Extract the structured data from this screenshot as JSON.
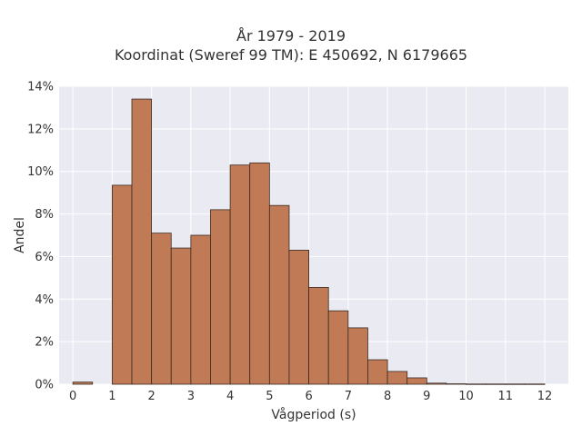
{
  "chart_data": {
    "type": "bar",
    "title_line1": "År 1979 - 2019",
    "title_line2": "Koordinat (Sweref 99 TM): E 450692, N 6179665",
    "xlabel": "Vågperiod (s)",
    "ylabel": "Andel",
    "xlim": [
      -0.35,
      12.6
    ],
    "ylim": [
      0,
      14
    ],
    "x_ticks": [
      0,
      1,
      2,
      3,
      4,
      5,
      6,
      7,
      8,
      9,
      10,
      11,
      12
    ],
    "y_ticks": [
      0,
      2,
      4,
      6,
      8,
      10,
      12,
      14
    ],
    "y_tick_labels": [
      "0%",
      "2%",
      "4%",
      "6%",
      "8%",
      "10%",
      "12%",
      "14%"
    ],
    "bin_width": 0.5,
    "bins": [
      {
        "x0": 0.0,
        "value": 0.1
      },
      {
        "x0": 1.0,
        "value": 9.35
      },
      {
        "x0": 1.5,
        "value": 13.4
      },
      {
        "x0": 2.0,
        "value": 7.1
      },
      {
        "x0": 2.5,
        "value": 6.4
      },
      {
        "x0": 3.0,
        "value": 7.0
      },
      {
        "x0": 3.5,
        "value": 8.2
      },
      {
        "x0": 4.0,
        "value": 10.3
      },
      {
        "x0": 4.5,
        "value": 10.4
      },
      {
        "x0": 5.0,
        "value": 8.4
      },
      {
        "x0": 5.5,
        "value": 6.3
      },
      {
        "x0": 6.0,
        "value": 4.55
      },
      {
        "x0": 6.5,
        "value": 3.45
      },
      {
        "x0": 7.0,
        "value": 2.65
      },
      {
        "x0": 7.5,
        "value": 1.15
      },
      {
        "x0": 8.0,
        "value": 0.6
      },
      {
        "x0": 8.5,
        "value": 0.3
      },
      {
        "x0": 9.0,
        "value": 0.05
      },
      {
        "x0": 9.5,
        "value": 0.02
      },
      {
        "x0": 10.0,
        "value": 0.01
      },
      {
        "x0": 10.5,
        "value": 0.01
      },
      {
        "x0": 11.0,
        "value": 0.01
      },
      {
        "x0": 11.5,
        "value": 0.01
      }
    ],
    "grid": true,
    "colors": {
      "bar_fill": "#c07b56",
      "bar_edge": "#3a2a22",
      "plot_bg": "#eaeaf2",
      "grid": "#ffffff"
    }
  }
}
